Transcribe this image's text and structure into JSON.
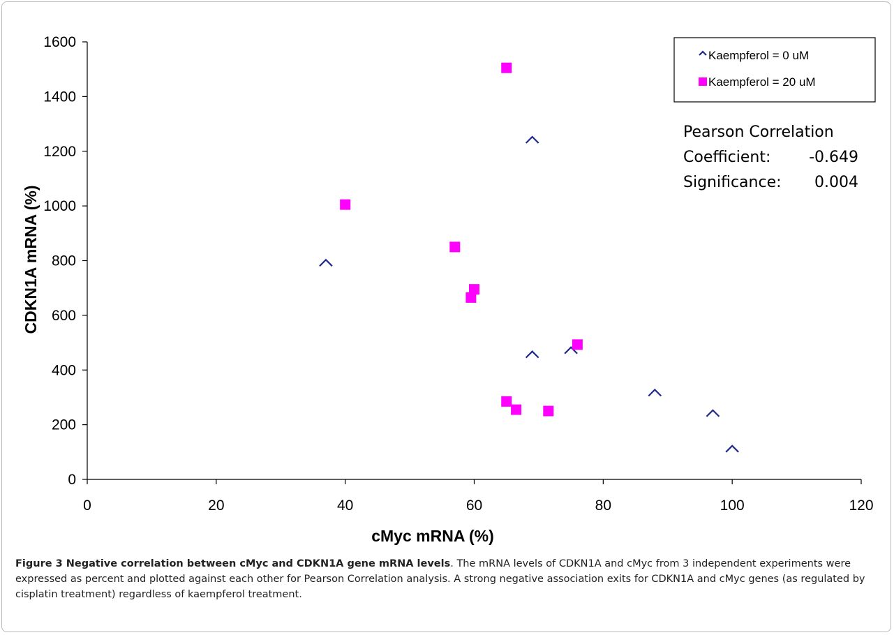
{
  "chart_data": {
    "type": "scatter",
    "xlabel": "cMyc mRNA (%)",
    "ylabel": "CDKN1A mRNA (%)",
    "xlim": [
      0,
      120
    ],
    "ylim": [
      0,
      1600
    ],
    "xticks": [
      0,
      20,
      40,
      60,
      80,
      100,
      120
    ],
    "yticks": [
      0,
      200,
      400,
      600,
      800,
      1000,
      1200,
      1400,
      1600
    ],
    "grid": false,
    "legend_position": "top-right",
    "series": [
      {
        "name": "Kaempferol = 0 uM",
        "marker": "diamond-outline",
        "color": "#1f2a8c",
        "points": [
          [
            37,
            780
          ],
          [
            69,
            1230
          ],
          [
            69,
            445
          ],
          [
            75,
            460
          ],
          [
            88,
            305
          ],
          [
            97,
            230
          ],
          [
            100,
            100
          ]
        ]
      },
      {
        "name": "Kaempferol = 20 uM",
        "marker": "square",
        "color": "#ff00ff",
        "points": [
          [
            65,
            1505
          ],
          [
            40,
            1005
          ],
          [
            57,
            850
          ],
          [
            60,
            695
          ],
          [
            59.5,
            665
          ],
          [
            76,
            493
          ],
          [
            65,
            285
          ],
          [
            66.5,
            255
          ],
          [
            71.5,
            250
          ]
        ]
      }
    ],
    "annotation": {
      "line1": "Pearson Correlation",
      "line2_label": "Coefficient:",
      "line2_value": "-0.649",
      "line3_label": "Significance:",
      "line3_value": "0.004"
    }
  },
  "caption": {
    "bold": "Figure 3 Negative correlation between cMyc and CDKN1A gene mRNA levels",
    "text": ". The mRNA levels of CDKN1A and cMyc from 3 independent experiments were expressed as percent and plotted against each other for Pearson Correlation analysis. A strong negative association exits for CDKN1A and cMyc genes (as regulated by cisplatin treatment) regardless of kaempferol treatment."
  }
}
